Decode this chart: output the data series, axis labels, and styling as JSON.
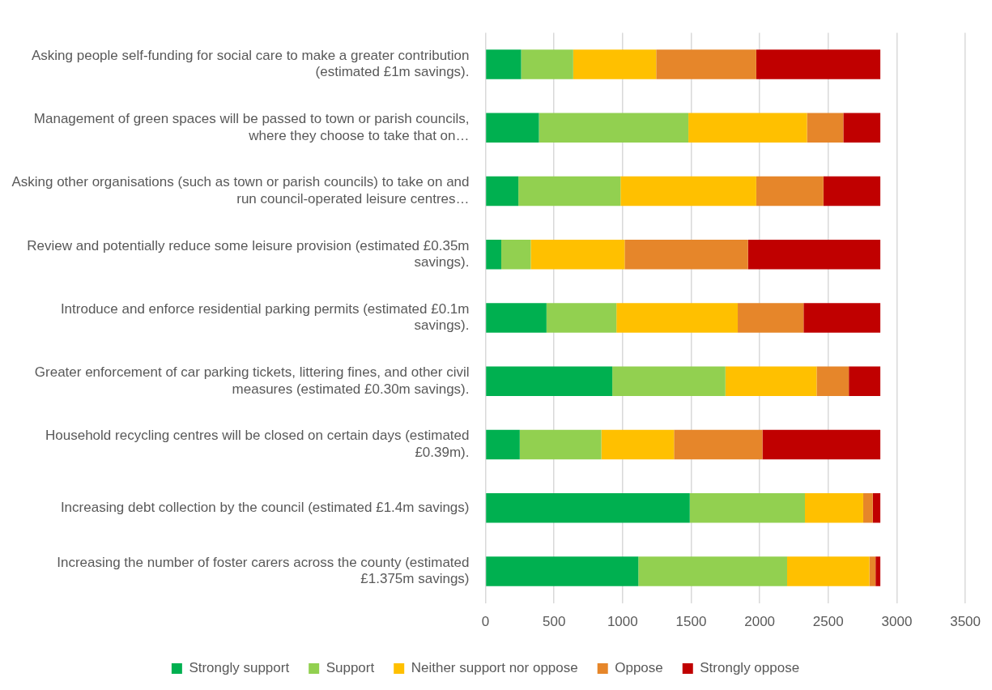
{
  "chart_data": {
    "type": "bar",
    "orientation": "horizontal",
    "stacked": true,
    "categories": [
      "Asking people self-funding for social care to make a greater contribution (estimated £1m savings).",
      "Management of green spaces will be passed to town or parish councils, where they choose to take that on…",
      "Asking other organisations (such as town or parish councils) to take on and run council-operated leisure centres…",
      "Review and potentially reduce some leisure provision (estimated £0.35m savings).",
      "Introduce and enforce residential parking permits (estimated £0.1m savings).",
      "Greater enforcement of car parking tickets, littering fines, and other civil measures (estimated £0.30m savings).",
      "Household recycling centres will be closed on certain days (estimated £0.39m).",
      "Increasing debt collection by the council (estimated £1.4m savings)",
      "Increasing the number of foster carers across the county (estimated £1.375m savings)"
    ],
    "series": [
      {
        "name": "Strongly support",
        "color": "#00b050",
        "values": [
          260,
          390,
          240,
          115,
          445,
          925,
          250,
          1490,
          1115
        ]
      },
      {
        "name": "Support",
        "color": "#92d050",
        "values": [
          380,
          1090,
          745,
          215,
          510,
          825,
          595,
          840,
          1085
        ]
      },
      {
        "name": "Neither support nor oppose",
        "color": "#ffc000",
        "values": [
          605,
          865,
          990,
          685,
          885,
          665,
          530,
          425,
          600
        ]
      },
      {
        "name": "Oppose",
        "color": "#e6862a",
        "values": [
          730,
          265,
          490,
          900,
          480,
          235,
          645,
          70,
          45
        ]
      },
      {
        "name": "Strongly oppose",
        "color": "#c00000",
        "values": [
          905,
          270,
          415,
          965,
          560,
          230,
          860,
          55,
          35
        ]
      }
    ],
    "xlim": [
      0,
      3500
    ],
    "xticks": [
      0,
      500,
      1000,
      1500,
      2000,
      2500,
      3000,
      3500
    ],
    "grid": "x",
    "legend": "bottom"
  }
}
